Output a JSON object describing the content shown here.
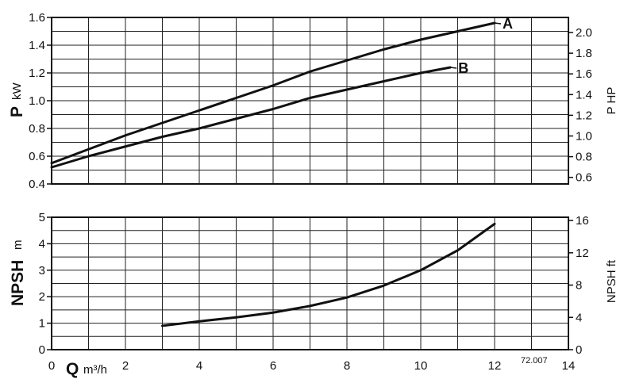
{
  "chart_data": [
    {
      "type": "line",
      "name": "power",
      "xlim": [
        0,
        14
      ],
      "ylim": [
        0.4,
        1.6
      ],
      "y_ticks": [
        "0.4",
        "0.6",
        "0.8",
        "1.0",
        "1.2",
        "1.4",
        "1.6"
      ],
      "y_label": "P",
      "y_unit": "kW",
      "y2_label": "P HP",
      "y2_ticks": [
        "0.6",
        "0.8",
        "1.0",
        "1.2",
        "1.4",
        "1.6",
        "1.8",
        "2.0"
      ],
      "y2_values": [
        0.6,
        0.8,
        1.0,
        1.2,
        1.4,
        1.6,
        1.8,
        2.0
      ],
      "grid": true,
      "series": [
        {
          "name": "A",
          "x": [
            0,
            1,
            2,
            3,
            4,
            5,
            6,
            7,
            8,
            9,
            10,
            11,
            12
          ],
          "y": [
            0.55,
            0.65,
            0.75,
            0.84,
            0.93,
            1.02,
            1.11,
            1.21,
            1.29,
            1.37,
            1.44,
            1.5,
            1.56
          ]
        },
        {
          "name": "B",
          "x": [
            0,
            1,
            2,
            3,
            4,
            5,
            6,
            7,
            8,
            9,
            10,
            10.8
          ],
          "y": [
            0.52,
            0.6,
            0.67,
            0.74,
            0.8,
            0.87,
            0.94,
            1.02,
            1.08,
            1.14,
            1.2,
            1.24
          ]
        }
      ]
    },
    {
      "type": "line",
      "name": "npsh",
      "xlim": [
        0,
        14
      ],
      "ylim": [
        0,
        5
      ],
      "x_ticks": [
        "0",
        "2",
        "4",
        "6",
        "8",
        "10",
        "12",
        "14"
      ],
      "x_label": "Q",
      "x_unit": "m³/h",
      "y_ticks": [
        "0",
        "1",
        "2",
        "3",
        "4",
        "5"
      ],
      "y_label": "NPSH",
      "y_unit": "m",
      "y2_label": "NPSH ft",
      "y2_ticks": [
        "0",
        "4",
        "8",
        "12",
        "16"
      ],
      "y2_values": [
        0,
        4,
        8,
        12,
        16
      ],
      "grid": true,
      "series": [
        {
          "name": "NPSH",
          "x": [
            3,
            4,
            5,
            6,
            7,
            8,
            9,
            10,
            11,
            12
          ],
          "y": [
            0.9,
            1.07,
            1.22,
            1.4,
            1.65,
            1.97,
            2.42,
            3.0,
            3.75,
            4.75
          ]
        }
      ]
    }
  ],
  "figure_code": "72.007"
}
